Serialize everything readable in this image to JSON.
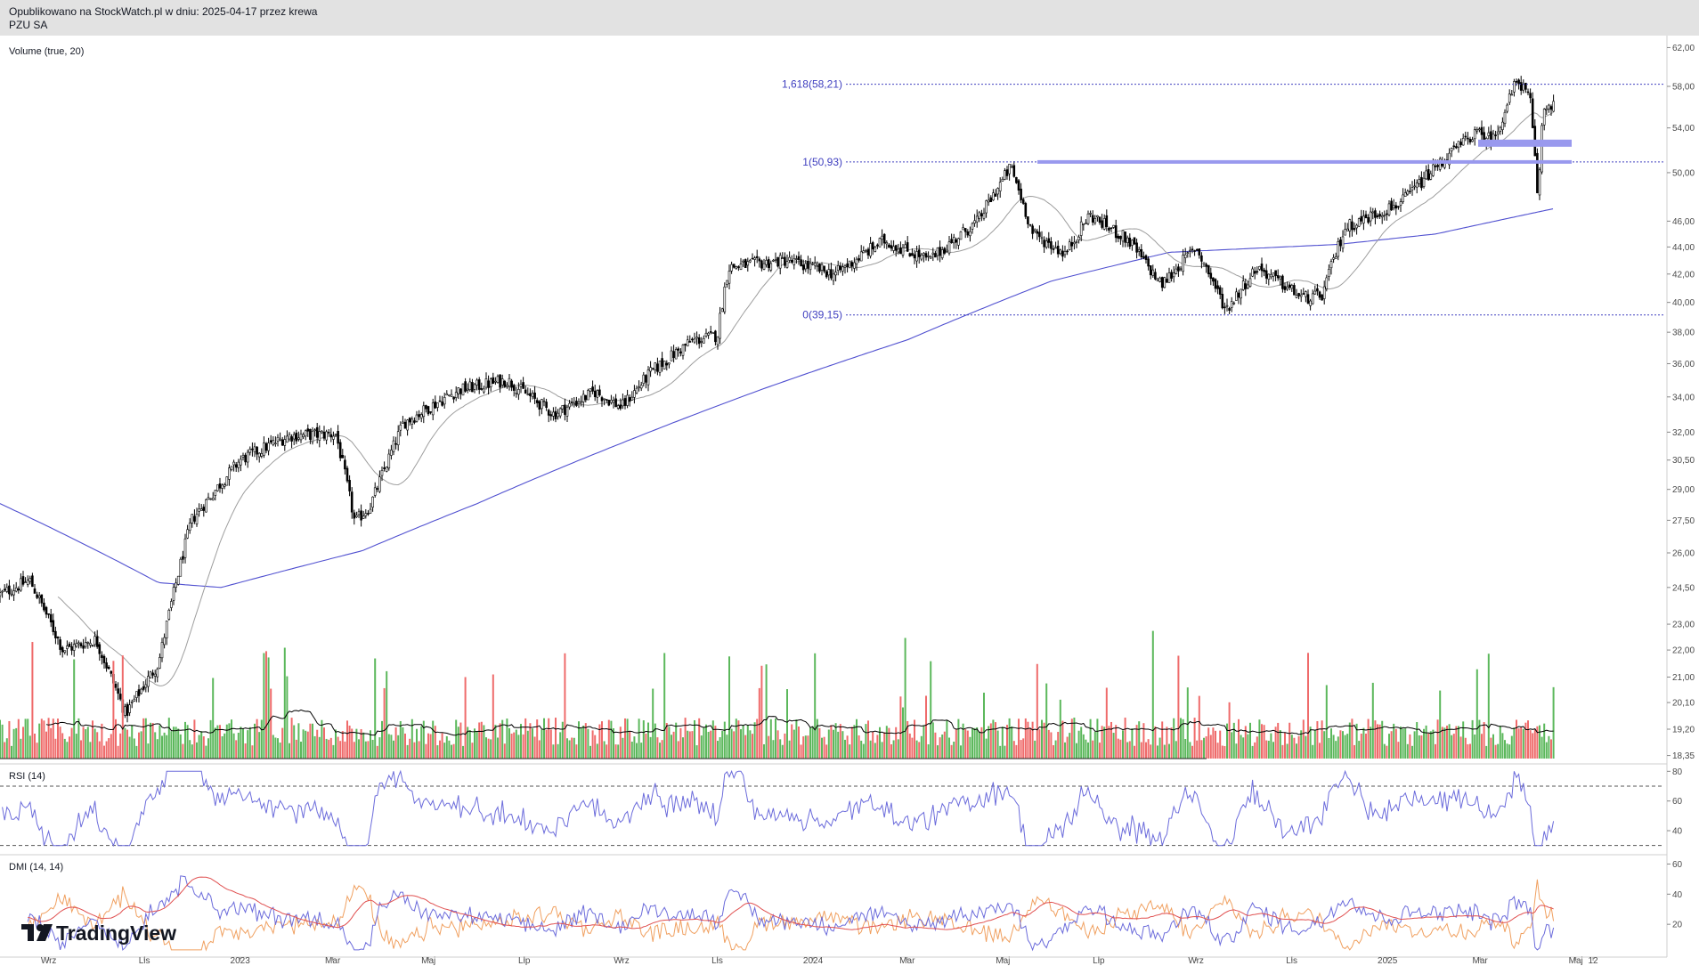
{
  "header": {
    "line1": "Opublikowano na StockWatch.pl w dniu: 2025-04-17 przez krewa",
    "line2": "PZU SA"
  },
  "branding": {
    "logo_text": "TradingView",
    "logo_icon": "tradingview-logo-icon"
  },
  "colors": {
    "price": "#000000",
    "sma_fast": "#9e9e9e",
    "sma_slow": "#5050d0",
    "fib": "#4040c0",
    "vol_up": "#5cb85c",
    "vol_down": "#ef6b6b",
    "vol_ma": "#000000",
    "rsi": "#6b6bdb",
    "dmi_adx": "#e05050",
    "dmi_plus": "#6b6bdb",
    "dmi_minus": "#f0a060",
    "zone": "#9999ee"
  },
  "chart_data": [
    {
      "type": "line",
      "title": "PZU SA",
      "y_axis_ticks": [
        "62,00",
        "58,00",
        "54,00",
        "50,00",
        "46,00",
        "44,00",
        "42,00",
        "40,00",
        "38,00",
        "36,00",
        "34,00",
        "32,00",
        "30,50",
        "29,00",
        "27,50",
        "26,00",
        "24,50",
        "23,00",
        "22,00",
        "21,00",
        "20,10",
        "19,20",
        "18,35"
      ],
      "y_scale": "log",
      "x_axis_ticks": [
        "Wrz",
        "Lis",
        "2023",
        "Mar",
        "Maj",
        "Lip",
        "Wrz",
        "Lis",
        "2024",
        "Mar",
        "Maj",
        "Lip",
        "Wrz",
        "Lis",
        "2025",
        "Mar",
        "Maj",
        "12"
      ],
      "series": [
        {
          "values_key": "price_anchors"
        }
      ],
      "price_anchors": [
        {
          "x": "2022-08-01",
          "y": 24.2
        },
        {
          "x": "2022-08-20",
          "y": 24.8
        },
        {
          "x": "2022-09-10",
          "y": 22.0
        },
        {
          "x": "2022-10-01",
          "y": 22.4
        },
        {
          "x": "2022-10-20",
          "y": 19.7
        },
        {
          "x": "2022-11-10",
          "y": 21.5
        },
        {
          "x": "2022-12-01",
          "y": 27.5
        },
        {
          "x": "2023-01-01",
          "y": 30.5
        },
        {
          "x": "2023-02-01",
          "y": 31.8
        },
        {
          "x": "2023-03-03",
          "y": 31.9
        },
        {
          "x": "2023-03-15",
          "y": 27.4
        },
        {
          "x": "2023-03-25",
          "y": 28.2
        },
        {
          "x": "2023-04-15",
          "y": 32.5
        },
        {
          "x": "2023-05-20",
          "y": 34.4
        },
        {
          "x": "2023-06-20",
          "y": 35.0
        },
        {
          "x": "2023-07-20",
          "y": 33.0
        },
        {
          "x": "2023-08-15",
          "y": 34.3
        },
        {
          "x": "2023-09-01",
          "y": 33.4
        },
        {
          "x": "2023-09-20",
          "y": 35.5
        },
        {
          "x": "2023-10-15",
          "y": 37.4
        },
        {
          "x": "2023-11-01",
          "y": 37.8
        },
        {
          "x": "2023-11-08",
          "y": 42.5
        },
        {
          "x": "2023-12-15",
          "y": 43.0
        },
        {
          "x": "2024-01-15",
          "y": 42.0
        },
        {
          "x": "2024-02-15",
          "y": 44.5
        },
        {
          "x": "2024-03-15",
          "y": 43.0
        },
        {
          "x": "2024-04-15",
          "y": 46.0
        },
        {
          "x": "2024-05-06",
          "y": 50.5
        },
        {
          "x": "2024-05-20",
          "y": 45.0
        },
        {
          "x": "2024-06-10",
          "y": 43.5
        },
        {
          "x": "2024-06-25",
          "y": 46.5
        },
        {
          "x": "2024-07-20",
          "y": 44.5
        },
        {
          "x": "2024-08-10",
          "y": 41.2
        },
        {
          "x": "2024-09-01",
          "y": 44.0
        },
        {
          "x": "2024-09-20",
          "y": 39.5
        },
        {
          "x": "2024-10-10",
          "y": 42.5
        },
        {
          "x": "2024-11-08",
          "y": 40.3
        },
        {
          "x": "2024-11-20",
          "y": 40.4
        },
        {
          "x": "2024-12-05",
          "y": 45.5
        },
        {
          "x": "2025-01-10",
          "y": 47.5
        },
        {
          "x": "2025-02-01",
          "y": 50.5
        },
        {
          "x": "2025-02-25",
          "y": 53.5
        },
        {
          "x": "2025-03-10",
          "y": 53.0
        },
        {
          "x": "2025-03-25",
          "y": 58.8
        },
        {
          "x": "2025-04-02",
          "y": 56.5
        },
        {
          "x": "2025-04-07",
          "y": 47.5
        },
        {
          "x": "2025-04-10",
          "y": 55.8
        },
        {
          "x": "2025-04-17",
          "y": 56.5
        }
      ],
      "sma_slow_anchors": [
        {
          "x": "2022-08-01",
          "y": 28.3
        },
        {
          "x": "2022-11-10",
          "y": 24.7
        },
        {
          "x": "2022-12-20",
          "y": 24.5
        },
        {
          "x": "2023-03-20",
          "y": 26.1
        },
        {
          "x": "2023-06-01",
          "y": 28.3
        },
        {
          "x": "2023-09-01",
          "y": 31.4
        },
        {
          "x": "2023-12-01",
          "y": 34.5
        },
        {
          "x": "2024-03-01",
          "y": 37.5
        },
        {
          "x": "2024-06-01",
          "y": 41.5
        },
        {
          "x": "2024-08-15",
          "y": 43.6
        },
        {
          "x": "2024-12-01",
          "y": 44.2
        },
        {
          "x": "2025-02-01",
          "y": 45.0
        },
        {
          "x": "2025-04-17",
          "y": 47.0
        }
      ],
      "fibonacci": [
        {
          "label": "1,618(58,21)",
          "level": 58.21
        },
        {
          "label": "1(50,93)",
          "level": 50.93
        },
        {
          "label": "0(39,15)",
          "level": 39.15
        }
      ]
    },
    {
      "type": "bar",
      "title": "Volume (true, 20)",
      "note": "daily volume bars colored green/red by direction with black moving average"
    },
    {
      "type": "line",
      "title": "RSI (14)",
      "y_axis_ticks": [
        "80",
        "60",
        "40"
      ],
      "levels": [
        70,
        30
      ],
      "ylim": [
        25,
        85
      ]
    },
    {
      "type": "line",
      "title": "DMI (14, 14)",
      "y_axis_ticks": [
        "60",
        "40",
        "20"
      ],
      "ylim": [
        0,
        65
      ]
    }
  ]
}
